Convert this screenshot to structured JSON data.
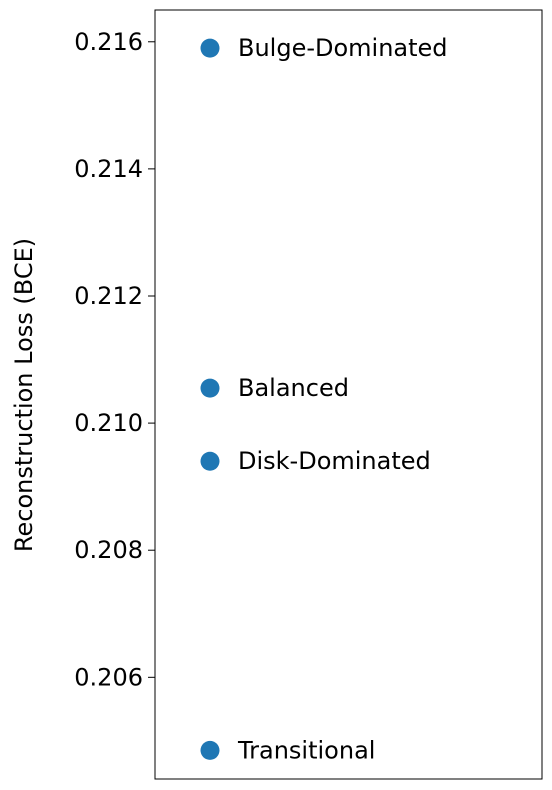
{
  "chart_data": {
    "type": "scatter",
    "title": "",
    "xlabel": "",
    "ylabel": "Reconstruction Loss (BCE)",
    "ylim": [
      0.2044,
      0.2165
    ],
    "yticks": [
      0.206,
      0.208,
      0.21,
      0.212,
      0.214,
      0.216
    ],
    "ytick_labels": [
      "0.206",
      "0.208",
      "0.210",
      "0.212",
      "0.214",
      "0.216"
    ],
    "grid": false,
    "marker_color": "#1f77b4",
    "points": [
      {
        "label": "Bulge-Dominated",
        "y": 0.2159
      },
      {
        "label": "Balanced",
        "y": 0.21055
      },
      {
        "label": "Disk-Dominated",
        "y": 0.2094
      },
      {
        "label": "Transitional",
        "y": 0.20485
      }
    ]
  }
}
